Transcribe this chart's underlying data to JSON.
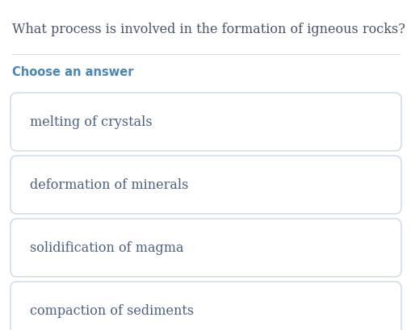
{
  "question": "What process is involved in the formation of igneous rocks?",
  "choose_label": "Choose an answer",
  "answers": [
    "melting of crystals",
    "deformation of minerals",
    "solidification of magma",
    "compaction of sediments"
  ],
  "bg_color": "#ffffff",
  "question_color": "#4a5568",
  "choose_color": "#4a86b8",
  "answer_text_color": "#4a6080",
  "box_edge_color": "#c8d8e8",
  "box_fill_color": "#ffffff",
  "separator_color": "#d0dce8",
  "question_fontsize": 11.5,
  "choose_fontsize": 10.5,
  "answer_fontsize": 11.5,
  "fig_width": 5.1,
  "fig_height": 4.1,
  "dpi": 100
}
